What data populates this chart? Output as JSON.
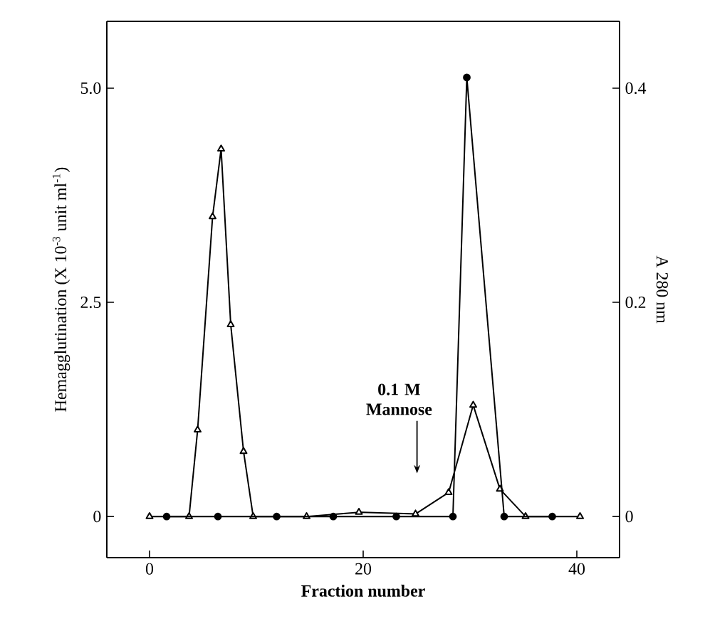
{
  "chart_data": {
    "type": "line",
    "xlabel": "Fraction number",
    "ylabel": "Hemagglutination (X 10$^{-3}$ unit ml$^{-1}$)",
    "y2label": "A 280 nm",
    "xlim": [
      -4,
      44
    ],
    "ylim": [
      -0.48,
      5.78
    ],
    "y2lim": [
      -0.0384,
      0.4624
    ],
    "xticks": [
      0,
      20,
      40
    ],
    "yticks": [
      0,
      2.5,
      {
        "value": 5,
        "label": "5.0"
      }
    ],
    "y2ticks": [
      0,
      0.2,
      0.4
    ],
    "grid": false,
    "line_style": "solid",
    "series": [
      {
        "color": "#000000",
        "marker": "triangle",
        "x": [
          0,
          3.7,
          4.5,
          5.9,
          6.7,
          7.6,
          8.8,
          9.7,
          14.7,
          19.6,
          24.9,
          28,
          30.3,
          32.8,
          35.2,
          40.3
        ],
        "values": [
          0,
          0,
          1.01,
          3.5,
          4.29,
          2.24,
          0.76,
          0,
          0,
          0.05,
          0.03,
          0.28,
          1.3,
          0.32,
          0,
          0
        ]
      },
      {
        "color": "#000000",
        "marker": "circle",
        "axis": "y2",
        "x": [
          1.6,
          6.4,
          11.9,
          17.2,
          23.1,
          28.4,
          29.7,
          33.2,
          37.7
        ],
        "values": [
          0,
          0,
          0,
          0,
          0,
          0,
          0.41,
          0,
          0
        ]
      }
    ],
    "annotations": [
      "0.1 M Mannose"
    ]
  }
}
